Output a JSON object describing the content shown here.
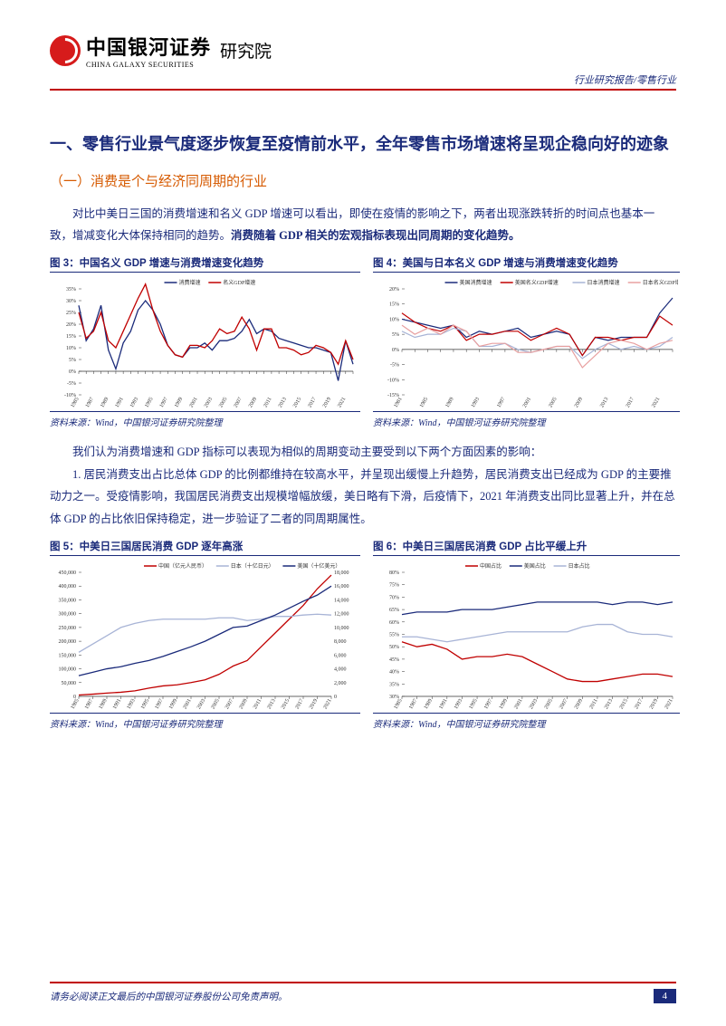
{
  "header": {
    "logo_cn": "中国银河证券",
    "logo_en": "CHINA GALAXY SECURITIES",
    "institute": "研究院",
    "top_right": "行业研究报告/零售行业"
  },
  "section": {
    "title": "一、零售行业景气度逐步恢复至疫情前水平，全年零售市场增速将呈现企稳向好的迹象",
    "subtitle": "（一）消费是个与经济同周期的行业"
  },
  "para1a": "对比中美日三国的消费增速和名义 GDP 增速可以看出，即使在疫情的影响之下，两者出现涨跌转折的时间点也基本一致，增减变化大体保持相同的趋势。",
  "para1b": "消费随着 GDP 相关的宏观指标表现出同周期的变化趋势。",
  "para2": "我们认为消费增速和 GDP 指标可以表现为相似的周期变动主要受到以下两个方面因素的影响：",
  "para3": "1. 居民消费支出占比总体 GDP 的比例都维持在较高水平，并呈现出缓慢上升趋势，居民消费支出已经成为 GDP 的主要推动力之一。受疫情影响，我国居民消费支出规模增幅放缓，美日略有下滑，后疫情下，2021 年消费支出同比显著上升，并在总体 GDP 的占比依旧保持稳定，进一步验证了二者的同周期属性。",
  "source": "资料来源：Wind，中国银河证券研究院整理",
  "chart3": {
    "title": "图 3：中国名义 GDP 增速与消费增速变化趋势",
    "type": "line",
    "legend": [
      {
        "label": "消费增速",
        "color": "#1a2a7a"
      },
      {
        "label": "名义GDP增速",
        "color": "#c00000"
      }
    ],
    "x_labels": [
      "1985",
      "1986",
      "1987",
      "1988",
      "1989",
      "1990",
      "1991",
      "1992",
      "1993",
      "1994",
      "1995",
      "1996",
      "1997",
      "1998",
      "1999",
      "2000",
      "2001",
      "2002",
      "2003",
      "2004",
      "2005",
      "2006",
      "2007",
      "2008",
      "2009",
      "2010",
      "2011",
      "2012",
      "2013",
      "2014",
      "2015",
      "2016",
      "2017",
      "2018",
      "2019",
      "2020",
      "2021",
      "2022"
    ],
    "ylim": [
      -10,
      35
    ],
    "ytick_step": 5,
    "series": {
      "consumption": [
        28,
        13,
        18,
        28,
        9,
        1,
        12,
        17,
        26,
        30,
        26,
        20,
        11,
        7,
        6,
        10,
        10,
        12,
        9,
        13,
        13,
        14,
        17,
        22,
        16,
        18,
        17,
        14,
        13,
        12,
        11,
        10,
        10,
        9,
        8,
        -4,
        13,
        3
      ],
      "gdp": [
        25,
        14,
        17,
        25,
        13,
        10,
        17,
        24,
        31,
        37,
        26,
        17,
        11,
        7,
        6,
        11,
        11,
        10,
        13,
        18,
        16,
        17,
        23,
        18,
        9,
        18,
        18,
        10,
        10,
        9,
        7,
        8,
        11,
        10,
        8,
        3,
        13,
        5
      ]
    },
    "colors": {
      "consumption": "#1a2a7a",
      "gdp": "#c00000"
    },
    "line_width": 1.3,
    "tick_fontsize": 6,
    "background_color": "#ffffff"
  },
  "chart4": {
    "title": "图 4：美国与日本名义 GDP 增速与消费增速变化趋势",
    "type": "line",
    "legend": [
      {
        "label": "美国消费增速",
        "color": "#1a2a7a"
      },
      {
        "label": "美国名义GDP增速",
        "color": "#c00000"
      },
      {
        "label": "日本消费增速",
        "color": "#a8b4d6"
      },
      {
        "label": "日本名义GDP增速",
        "color": "#e8a0a0"
      }
    ],
    "x_labels": [
      "1981",
      "1983",
      "1985",
      "1987",
      "1989",
      "1991",
      "1993",
      "1995",
      "1997",
      "1999",
      "2001",
      "2003",
      "2005",
      "2007",
      "2009",
      "2011",
      "2013",
      "2015",
      "2017",
      "2019",
      "2021",
      "2022H"
    ],
    "ylim": [
      -15,
      20
    ],
    "ytick_step": 5,
    "series": {
      "us_cons": [
        10,
        9,
        8,
        7,
        8,
        4,
        6,
        5,
        6,
        7,
        4,
        5,
        6,
        5,
        -2,
        4,
        3,
        4,
        4,
        4,
        12,
        17
      ],
      "us_gdp": [
        12,
        9,
        7,
        6,
        8,
        3,
        5,
        5,
        6,
        6,
        3,
        5,
        7,
        5,
        -2,
        4,
        4,
        3,
        4,
        4,
        11,
        8
      ],
      "jp_cons": [
        6,
        4,
        5,
        5,
        7,
        6,
        1,
        1,
        2,
        0,
        -1,
        0,
        1,
        1,
        -3,
        0,
        2,
        0,
        1,
        0,
        1,
        4
      ],
      "jp_gdp": [
        8,
        5,
        7,
        5,
        8,
        6,
        1,
        2,
        2,
        -1,
        -1,
        0,
        1,
        1,
        -6,
        -2,
        2,
        3,
        2,
        0,
        2,
        3
      ]
    },
    "colors": {
      "us_cons": "#1a2a7a",
      "us_gdp": "#c00000",
      "jp_cons": "#a8b4d6",
      "jp_gdp": "#e8a0a0"
    },
    "line_width": 1.2,
    "tick_fontsize": 6,
    "background_color": "#ffffff"
  },
  "chart5": {
    "title": "图 5：中美日三国居民消费 GDP 逐年高涨",
    "type": "line_dual_axis",
    "legend": [
      {
        "label": "中国（亿元人民币）",
        "color": "#c00000"
      },
      {
        "label": "日本（十亿日元）",
        "color": "#a8b4d6"
      },
      {
        "label": "美国（十亿美元）",
        "color": "#1a2a7a"
      }
    ],
    "x_labels": [
      "1985",
      "1987",
      "1989",
      "1991",
      "1993",
      "1995",
      "1997",
      "1999",
      "2001",
      "2003",
      "2005",
      "2007",
      "2009",
      "2011",
      "2013",
      "2015",
      "2017",
      "2019",
      "2021"
    ],
    "ylim_left": [
      0,
      450000
    ],
    "ytick_left_step": 50000,
    "ylim_right": [
      0,
      18000
    ],
    "ytick_right_step": 2000,
    "series": {
      "china": [
        5000,
        8000,
        12000,
        15000,
        20000,
        30000,
        38000,
        42000,
        50000,
        60000,
        80000,
        110000,
        130000,
        180000,
        230000,
        280000,
        330000,
        390000,
        440000
      ],
      "japan": [
        160000,
        190000,
        220000,
        250000,
        265000,
        275000,
        280000,
        280000,
        280000,
        280000,
        285000,
        285000,
        275000,
        280000,
        290000,
        290000,
        295000,
        298000,
        295000
      ],
      "usa": [
        3000,
        3500,
        4000,
        4300,
        4800,
        5200,
        5800,
        6500,
        7200,
        8000,
        9000,
        10000,
        10200,
        11000,
        11800,
        12800,
        13800,
        14700,
        16000
      ]
    },
    "series_axis": {
      "china": "left",
      "japan": "left",
      "usa": "right"
    },
    "colors": {
      "china": "#c00000",
      "japan": "#a8b4d6",
      "usa": "#1a2a7a"
    },
    "line_width": 1.3,
    "tick_fontsize": 6,
    "background_color": "#ffffff"
  },
  "chart6": {
    "title": "图 6：中美日三国居民消费 GDP 占比平缓上升",
    "type": "line",
    "legend": [
      {
        "label": "中国占比",
        "color": "#c00000"
      },
      {
        "label": "美国占比",
        "color": "#1a2a7a"
      },
      {
        "label": "日本占比",
        "color": "#a8b4d6"
      }
    ],
    "x_labels": [
      "1985",
      "1987",
      "1989",
      "1991",
      "1993",
      "1995",
      "1997",
      "1999",
      "2001",
      "2003",
      "2005",
      "2007",
      "2009",
      "2011",
      "2013",
      "2015",
      "2017",
      "2019",
      "2021"
    ],
    "ylim": [
      30,
      80
    ],
    "ytick_step": 5,
    "series": {
      "china": [
        52,
        50,
        51,
        49,
        45,
        46,
        46,
        47,
        46,
        43,
        40,
        37,
        36,
        36,
        37,
        38,
        39,
        39,
        38
      ],
      "usa": [
        63,
        64,
        64,
        64,
        65,
        65,
        65,
        66,
        67,
        68,
        68,
        68,
        68,
        68,
        67,
        68,
        68,
        67,
        68
      ],
      "japan": [
        54,
        54,
        53,
        52,
        53,
        54,
        55,
        56,
        56,
        56,
        56,
        56,
        58,
        59,
        59,
        56,
        55,
        55,
        54
      ]
    },
    "colors": {
      "china": "#c00000",
      "usa": "#1a2a7a",
      "japan": "#a8b4d6"
    },
    "line_width": 1.3,
    "tick_fontsize": 6,
    "background_color": "#ffffff"
  },
  "footer": {
    "text": "请务必阅读正文最后的中国银河证券股份公司免责声明。",
    "page": "4"
  }
}
